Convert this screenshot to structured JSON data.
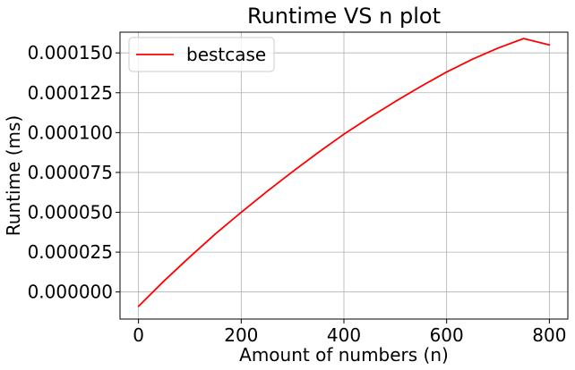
{
  "chart_data": {
    "type": "line",
    "title": "Runtime VS n plot",
    "xlabel": "Amount of numbers (n)",
    "ylabel": "Runtime (ms)",
    "xlim": [
      -36,
      836
    ],
    "ylim": [
      -1.7e-05,
      0.000163
    ],
    "xticks": [
      0,
      200,
      400,
      600,
      800
    ],
    "xtick_labels": [
      "0",
      "200",
      "400",
      "600",
      "800"
    ],
    "yticks": [
      0.0,
      2.5e-05,
      5e-05,
      7.5e-05,
      0.0001,
      0.000125,
      0.00015
    ],
    "ytick_labels": [
      "0.000000",
      "0.000025",
      "0.000050",
      "0.000075",
      "0.000100",
      "0.000125",
      "0.000150"
    ],
    "grid": true,
    "legend_position": "top-left",
    "series": [
      {
        "name": "bestcase",
        "color": "#ff0000",
        "x": [
          0,
          50,
          100,
          150,
          200,
          250,
          300,
          350,
          400,
          450,
          500,
          550,
          600,
          650,
          700,
          750,
          800
        ],
        "y": [
          -9e-06,
          7e-06,
          2.2e-05,
          3.65e-05,
          5e-05,
          6.3e-05,
          7.55e-05,
          8.75e-05,
          9.9e-05,
          0.0001095,
          0.0001195,
          0.000129,
          0.000138,
          0.000146,
          0.000153,
          0.000159,
          0.000155
        ]
      }
    ]
  }
}
